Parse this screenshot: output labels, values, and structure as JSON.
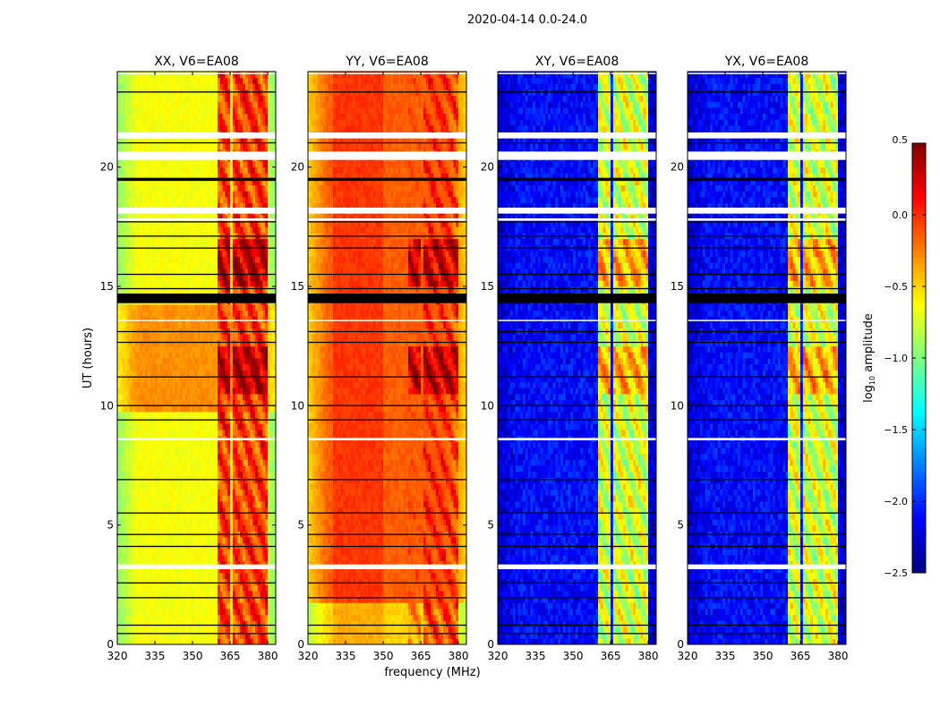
{
  "chart_data": {
    "type": "heatmap",
    "title": "2020-04-14 0.0-24.0",
    "xlabel": "frequency (MHz)",
    "ylabel": "UT (hours)",
    "xlim": [
      320,
      383.2
    ],
    "ylim": [
      0,
      24
    ],
    "xticks": [
      320,
      335,
      350,
      365,
      380
    ],
    "xtick_labels": [
      "320",
      "335",
      "350",
      "365",
      "380"
    ],
    "yticks": [
      0,
      5,
      10,
      15,
      20
    ],
    "ytick_labels": [
      "0",
      "5",
      "10",
      "15",
      "20"
    ],
    "colormap": "jet",
    "colorbar": {
      "label_main": "log",
      "label_sub": "10",
      "label_rest": " amplitude",
      "range": [
        -2.5,
        0.5
      ],
      "ticks": [
        0.5,
        0.0,
        -0.5,
        -1.0,
        -1.5,
        -2.0,
        -2.5
      ],
      "tick_labels": [
        "0.5",
        "0.0",
        "−0.5",
        "−1.0",
        "−1.5",
        "−2.0",
        "−2.5"
      ]
    },
    "panels": [
      {
        "title": "XX, V6=EA08",
        "baseline": -0.65,
        "edge_drop": -0.3,
        "band_level": -0.05
      },
      {
        "title": "YY, V6=EA08",
        "baseline": -0.15,
        "edge_drop": -0.35,
        "band_level": -0.1
      },
      {
        "title": "XY, V6=EA08",
        "baseline": -2.1,
        "edge_drop": -0.2,
        "band_level": -0.75
      },
      {
        "title": "YX, V6=EA08",
        "baseline": -2.1,
        "edge_drop": -0.2,
        "band_level": -0.75
      }
    ],
    "band_freqs_mhz": [
      [
        360.2,
        365.3
      ],
      [
        366.4,
        370.7
      ],
      [
        371.4,
        375.7
      ],
      [
        376.4,
        380.4
      ]
    ],
    "strong_band_hours": [
      [
        14.9,
        17.0
      ],
      [
        10.4,
        12.5
      ]
    ],
    "flagged_white_hours": [
      [
        21.2,
        21.45
      ],
      [
        20.3,
        20.65
      ],
      [
        18.05,
        18.3
      ],
      [
        17.75,
        17.85
      ],
      [
        8.55,
        8.65
      ],
      [
        3.15,
        3.35
      ],
      [
        23.9,
        23.95
      ],
      [
        13.55,
        13.6
      ]
    ],
    "flagged_black_hours": [
      [
        14.3,
        14.7
      ],
      [
        19.42,
        19.55
      ],
      [
        23.13,
        23.17
      ],
      [
        21.0,
        21.04
      ],
      [
        17.7,
        17.73
      ],
      [
        17.1,
        17.13
      ],
      [
        16.6,
        16.63
      ],
      [
        15.5,
        15.53
      ],
      [
        14.9,
        14.93
      ],
      [
        13.1,
        13.13
      ],
      [
        12.65,
        12.68
      ],
      [
        11.2,
        11.23
      ],
      [
        10.0,
        10.03
      ],
      [
        9.4,
        9.43
      ],
      [
        6.9,
        6.93
      ],
      [
        5.5,
        5.53
      ],
      [
        4.6,
        4.63
      ],
      [
        4.1,
        4.13
      ],
      [
        2.55,
        2.6
      ],
      [
        1.95,
        1.98
      ],
      [
        0.8,
        0.83
      ],
      [
        0.45,
        0.48
      ]
    ]
  }
}
